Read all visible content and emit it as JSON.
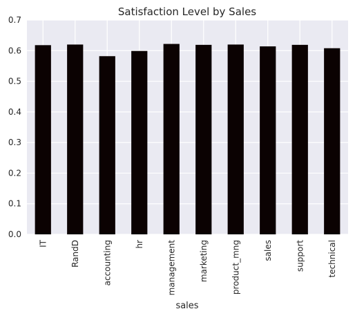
{
  "chart_data": {
    "type": "bar",
    "title": "Satisfaction Level by Sales",
    "xlabel": "sales",
    "ylabel": "",
    "categories": [
      "IT",
      "RandD",
      "accounting",
      "hr",
      "management",
      "marketing",
      "product_mng",
      "sales",
      "support",
      "technical"
    ],
    "values": [
      0.618,
      0.62,
      0.582,
      0.599,
      0.622,
      0.619,
      0.62,
      0.614,
      0.619,
      0.608
    ],
    "ylim": [
      0,
      0.7
    ],
    "yticks": [
      "0.0",
      "0.1",
      "0.2",
      "0.3",
      "0.4",
      "0.5",
      "0.6",
      "0.7"
    ],
    "grid": true,
    "legend": "none",
    "colors": {
      "bar": "#0b0202",
      "plot_background": "#eaeaf2",
      "grid": "#ffffff",
      "text": "#262626"
    }
  }
}
